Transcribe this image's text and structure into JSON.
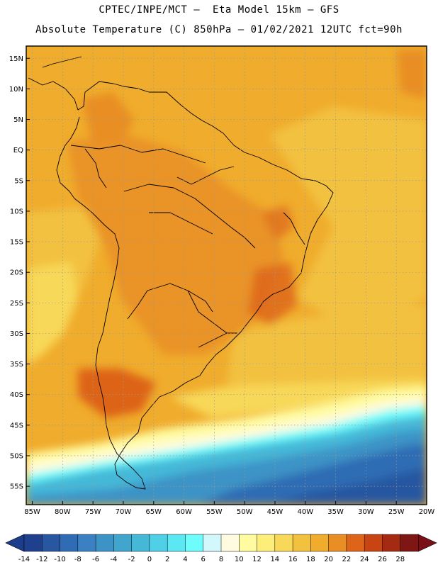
{
  "header": {
    "line1": "CPTEC/INPE/MCT –  Eta Model 15km – GFS",
    "line2": "Absolute Temperature (C) 850hPa – 01/02/2021 12UTC fct=90h"
  },
  "map": {
    "lat_labels": [
      "15N",
      "10N",
      "5N",
      "EQ",
      "5S",
      "10S",
      "15S",
      "20S",
      "25S",
      "30S",
      "35S",
      "40S",
      "45S",
      "50S",
      "55S"
    ],
    "lat_values": [
      15,
      10,
      5,
      0,
      -5,
      -10,
      -15,
      -20,
      -25,
      -30,
      -35,
      -40,
      -45,
      -50,
      -55
    ],
    "lon_labels": [
      "85W",
      "80W",
      "75W",
      "70W",
      "65W",
      "60W",
      "55W",
      "50W",
      "45W",
      "40W",
      "35W",
      "30W",
      "25W",
      "20W"
    ],
    "lon_values": [
      -85,
      -80,
      -75,
      -70,
      -65,
      -60,
      -55,
      -50,
      -45,
      -40,
      -35,
      -30,
      -25,
      -20
    ],
    "lat_range": [
      -58,
      17
    ],
    "lon_range": [
      -86,
      -20
    ]
  },
  "colorbar": {
    "ticks": [
      "-14",
      "-12",
      "-10",
      "-8",
      "-6",
      "-4",
      "-2",
      "0",
      "2",
      "4",
      "6",
      "8",
      "10",
      "12",
      "14",
      "16",
      "18",
      "20",
      "22",
      "24",
      "26",
      "28"
    ],
    "low_color": "#1c3c8c",
    "high_color": "#7a0f18",
    "colors": [
      "#1f3f8f",
      "#2856a0",
      "#2f6cb4",
      "#3a80c2",
      "#3c93c6",
      "#40a6cd",
      "#45b8d8",
      "#4fd0e6",
      "#5ce8f2",
      "#6ffcfc",
      "#d2f8fb",
      "#fffbe0",
      "#fffba0",
      "#fdee7a",
      "#f8d858",
      "#f3c140",
      "#f0ac2c",
      "#e98e24",
      "#dd6418",
      "#c84412",
      "#a52a12",
      "#7e1614"
    ]
  }
}
